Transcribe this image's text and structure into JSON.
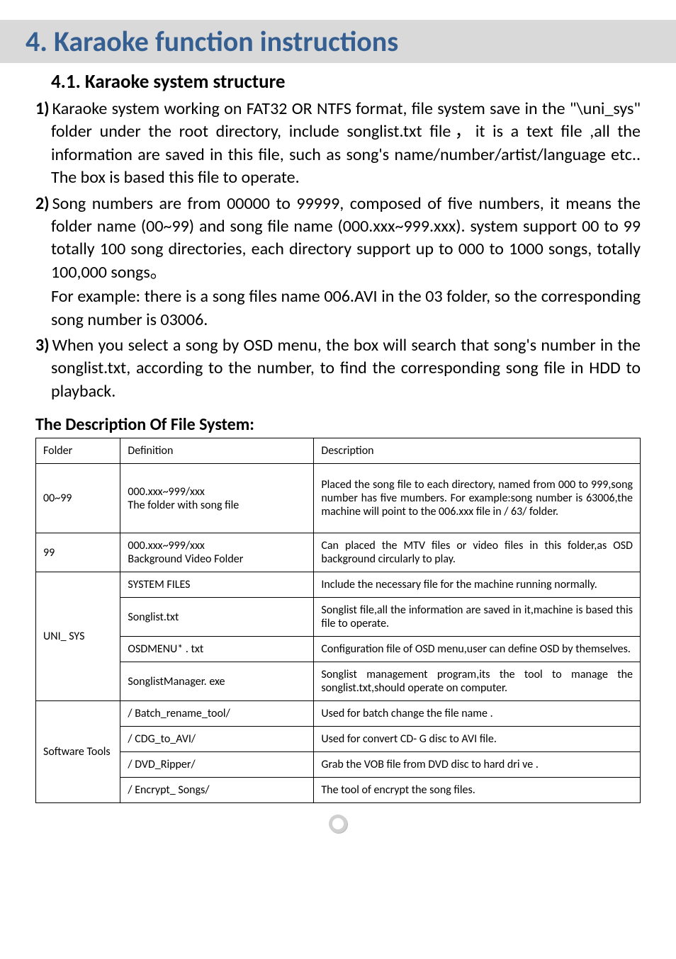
{
  "heading": "4. Karaoke function instructions",
  "subheading": "4.1. Karaoke system structure",
  "items": [
    {
      "num": "1)",
      "text": "Karaoke system working on FAT32 OR NTFS format, file system save in the \"\\uni_sys\" folder under the root directory, include songlist.txt file，it is a text file ,all the information   are saved in this file, such as song's name/number/artist/language etc.. The box is based this file to operate."
    },
    {
      "num": "2)",
      "text": "Song numbers are from 00000 to 99999, composed of five numbers, it means the folder name (00~99) and song file name (000.xxx~999.xxx). system support 00 to 99 totally 100 song directories, each directory support up to 000 to 1000 songs, totally 100,000 songs。",
      "sub": "For example: there is a song files name 006.AVI in the 03 folder, so the corresponding song number is 03006."
    },
    {
      "num": "3)",
      "text": "When you select a song by OSD menu, the box will search that song's number in the songlist.txt, according to the number, to find the corresponding song file in HDD to playback."
    }
  ],
  "table_caption": "The Description Of File System:",
  "table": {
    "headers": [
      "Folder",
      "Definition",
      "Description"
    ],
    "groups": [
      {
        "folder": "00~99",
        "rows": [
          {
            "def": "000.xxx~999/xxx\nThe folder with song file",
            "desc": "Placed the song file to each directory, named from 000 to 999,song number has five mumbers. For example:song number is 63006,the machine will point to the 006.xxx file in / 63/   folder.",
            "tall": true
          }
        ]
      },
      {
        "folder": "99",
        "rows": [
          {
            "def": "000.xxx~999/xxx\nBackground Video Folder",
            "desc": "Can placed the MTV files or video files in this folder,as OSD background circularly   to play."
          }
        ]
      },
      {
        "folder": "UNI_ SYS",
        "rows": [
          {
            "def": "SYSTEM FILES",
            "desc": "Include the necessary file for the machine running normally."
          },
          {
            "def": "Songlist.txt",
            "desc": "Songlist file,all the information are saved in it,machine is based this file to operate."
          },
          {
            "def": "OSDMENU* . txt",
            "desc": "Configuration file of OSD menu,user can define OSD by themselves."
          },
          {
            "def": "SonglistManager. exe",
            "desc": "Songlist management program,its the tool to manage the songlist.txt,should operate on computer."
          }
        ]
      },
      {
        "folder": "Software Tools",
        "rows": [
          {
            "def": "/ Batch_rename_tool/",
            "desc": "Used for batch change the file name ."
          },
          {
            "def": "/ CDG_to_AVI/",
            "desc": "Used for convert   CD- G disc to AVI file."
          },
          {
            "def": "/ DVD_Ripper/",
            "desc": "Grab the VOB file from DVD disc to hard dri ve ."
          },
          {
            "def": "/ Encrypt_ Songs/",
            "desc": "The tool of encrypt the song files."
          }
        ]
      }
    ]
  }
}
